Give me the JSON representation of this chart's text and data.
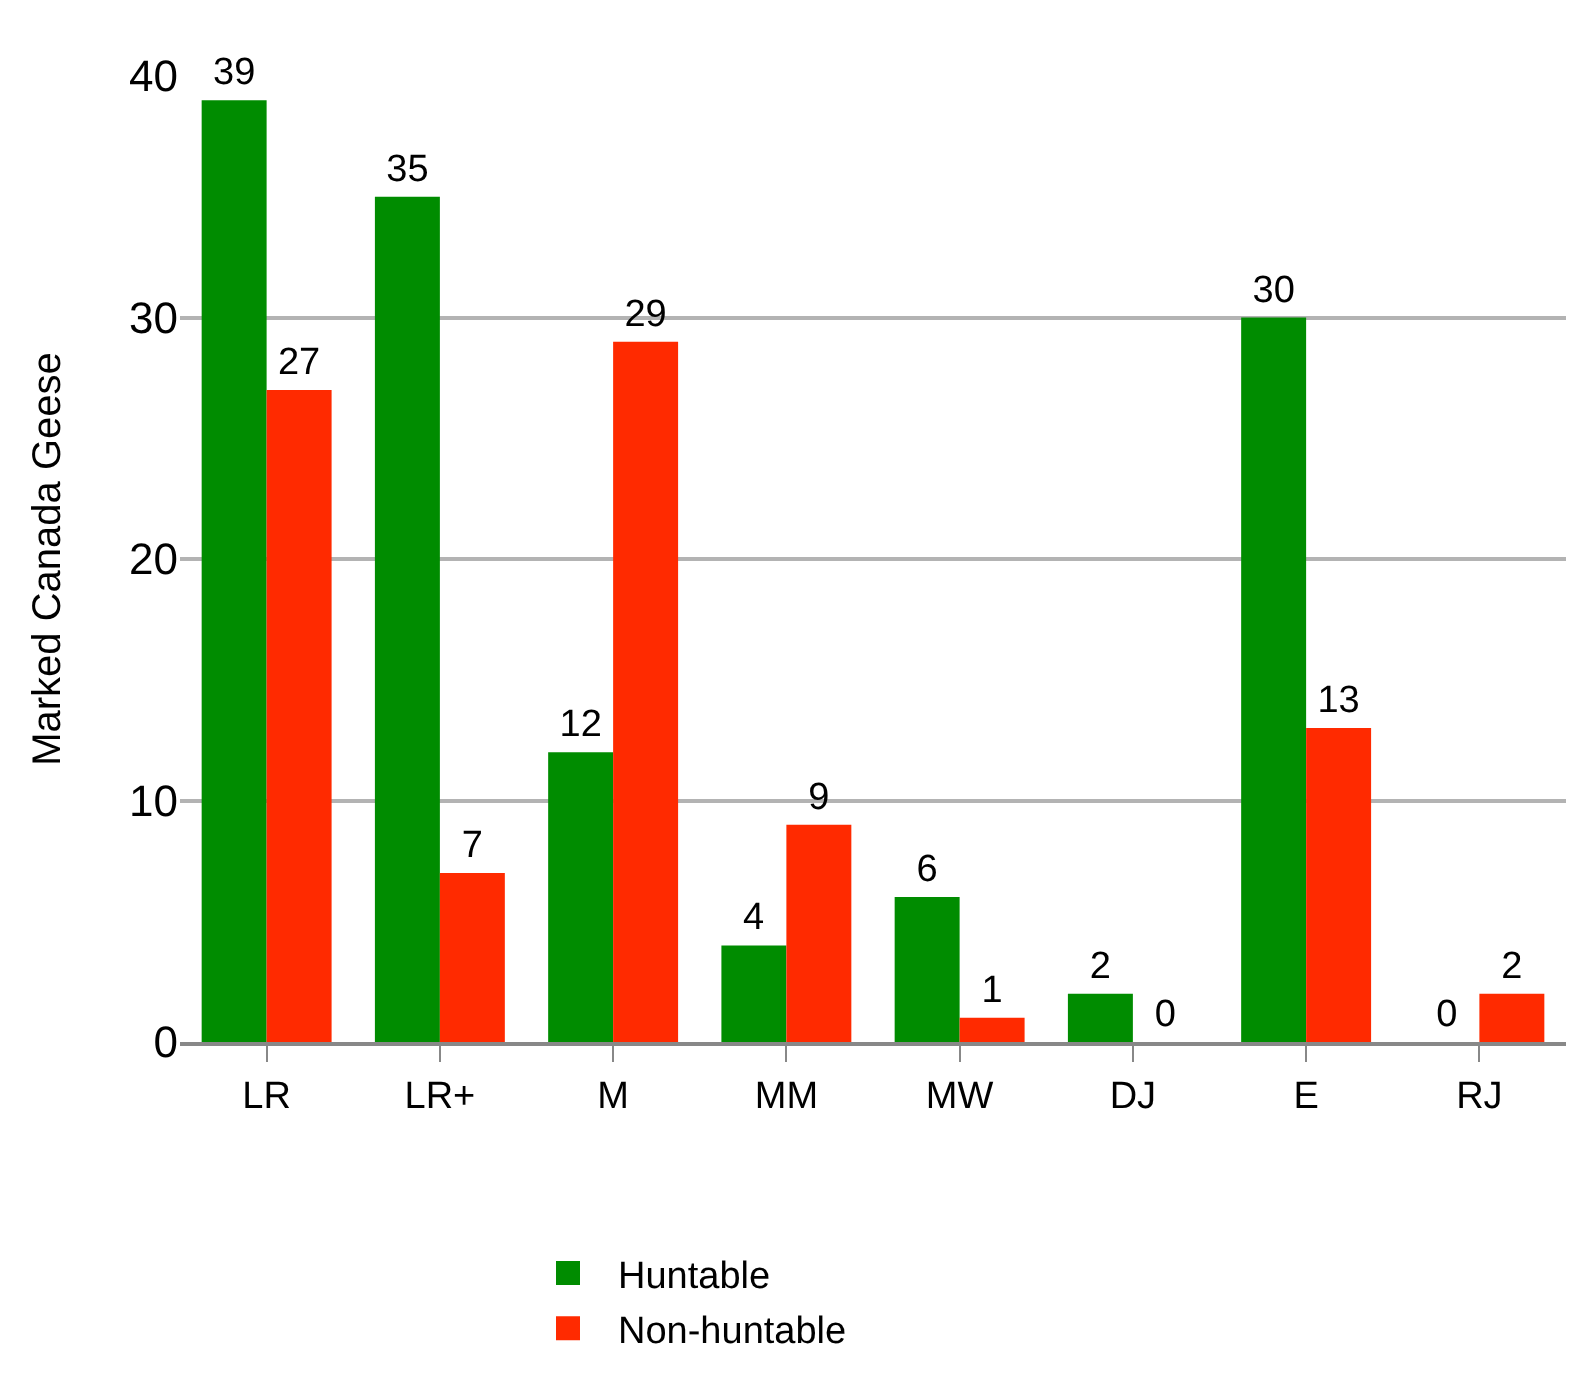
{
  "chart_data": {
    "type": "bar",
    "ylabel": "Marked Canada Geese",
    "categories": [
      "LR",
      "LR+",
      "M",
      "MM",
      "MW",
      "DJ",
      "E",
      "RJ"
    ],
    "series": [
      {
        "name": "Huntable",
        "color": "#008c00",
        "values": [
          39,
          35,
          12,
          4,
          6,
          2,
          30,
          0
        ]
      },
      {
        "name": "Non-huntable",
        "color": "#ff2a00",
        "values": [
          27,
          7,
          29,
          9,
          1,
          0,
          13,
          2
        ]
      }
    ],
    "ylim": [
      0,
      40
    ],
    "yticks": [
      0,
      10,
      20,
      30,
      40
    ],
    "grid": "y",
    "legend": "bottom",
    "data_labels": true
  }
}
